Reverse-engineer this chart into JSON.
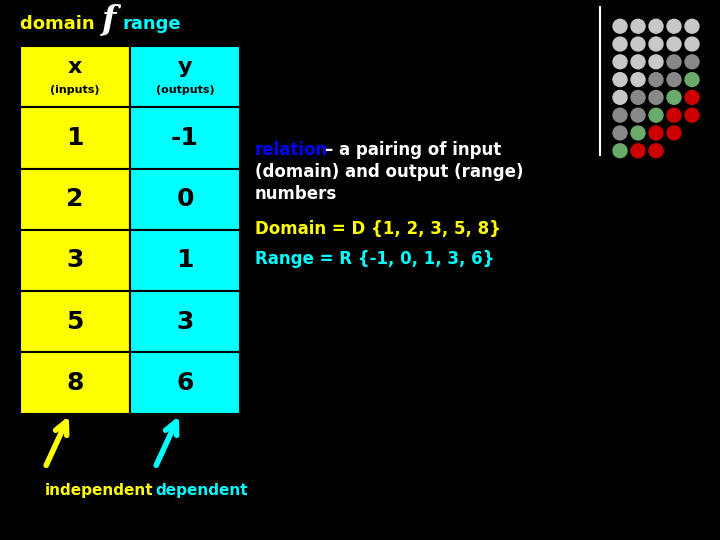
{
  "bg_color": "#000000",
  "col_x_label": "x",
  "col_x_sub": "(inputs)",
  "col_y_label": "y",
  "col_y_sub": "(outputs)",
  "x_values": [
    "1",
    "2",
    "3",
    "5",
    "8"
  ],
  "y_values": [
    "-1",
    "0",
    "1",
    "3",
    "6"
  ],
  "col_x_color": "#ffff00",
  "col_y_color": "#00ffff",
  "header_x_bg": "#ffff00",
  "header_y_bg": "#00ffff",
  "cell_x_bg": "#ffff00",
  "cell_y_bg": "#00ffff",
  "text_color_black": "#000000",
  "relation_color": "#0000ff",
  "relation_text": "relation",
  "desc_line2": "– a pairing of input",
  "desc_line3": "(domain) and output (range)",
  "desc_line4": "numbers",
  "desc_color": "#ffffff",
  "domain_set_color": "#ffff00",
  "domain_set_text": "Domain = D {1, 2, 3, 5, 8}",
  "range_set_color": "#00ffff",
  "range_set_text": "Range = R {-1, 0, 1, 3, 6}",
  "independent_color": "#ffff00",
  "independent_text": "independent",
  "dependent_color": "#00ffff",
  "dependent_text": "dependent",
  "arrow_x_color": "#ffff00",
  "arrow_y_color": "#00ffff",
  "title_domain": "domain ",
  "title_f": "f",
  "title_range": "range",
  "title_domain_color": "#ffff00",
  "title_f_color": "#ffffff",
  "title_range_color": "#00ffff",
  "dot_colors_grid": [
    [
      "#c8c8c8",
      "#c8c8c8",
      "#c8c8c8",
      "#c8c8c8",
      "#c8c8c8"
    ],
    [
      "#c8c8c8",
      "#c8c8c8",
      "#c8c8c8",
      "#c8c8c8",
      "#c8c8c8"
    ],
    [
      "#c8c8c8",
      "#c8c8c8",
      "#c8c8c8",
      "#888888",
      "#888888"
    ],
    [
      "#c8c8c8",
      "#c8c8c8",
      "#888888",
      "#888888",
      "#6aaa6a"
    ],
    [
      "#c8c8c8",
      "#888888",
      "#888888",
      "#6aaa6a",
      "#cc0000"
    ],
    [
      "#888888",
      "#888888",
      "#6aaa6a",
      "#cc0000",
      "#cc0000"
    ],
    [
      "#888888",
      "#6aaa6a",
      "#cc0000",
      "#cc0000",
      "none"
    ],
    [
      "#6aaa6a",
      "#cc0000",
      "#cc0000",
      "none",
      "none"
    ]
  ]
}
